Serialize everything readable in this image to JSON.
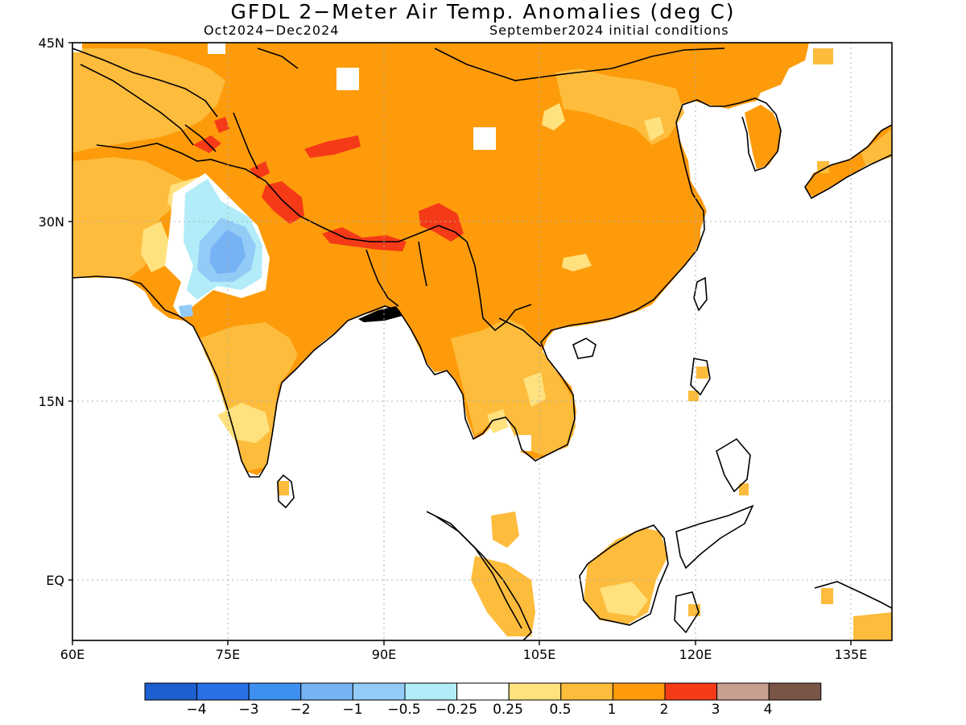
{
  "title": "GFDL 2-Meter Air Temp. Anomalies (deg C)",
  "period": "Oct2024-Dec2024",
  "initial_conditions": "September2024 initial conditions",
  "map": {
    "lon_range": [
      60,
      140
    ],
    "lat_range": [
      -5,
      45
    ],
    "lat_ticks": [
      "45N",
      "30N",
      "15N",
      "EQ"
    ],
    "lon_ticks": [
      "60E",
      "75E",
      "90E",
      "105E",
      "120E",
      "135E"
    ],
    "grid": "dotted",
    "ocean_fill": "masked-white"
  },
  "colorbar": {
    "colors": [
      "#1b5fd0",
      "#2a6fe6",
      "#3d8ff0",
      "#76b3f5",
      "#93cbf7",
      "#b1ecf8",
      "#ffffff",
      "#ffe17e",
      "#fdbc3c",
      "#fd9b0b",
      "#f53a17",
      "#c9a090",
      "#7a5446"
    ],
    "labels": [
      "-4",
      "-3",
      "-2",
      "-1",
      "-0.5",
      "-0.25",
      "0.25",
      "0.5",
      "1",
      "2",
      "3",
      "4"
    ]
  }
}
